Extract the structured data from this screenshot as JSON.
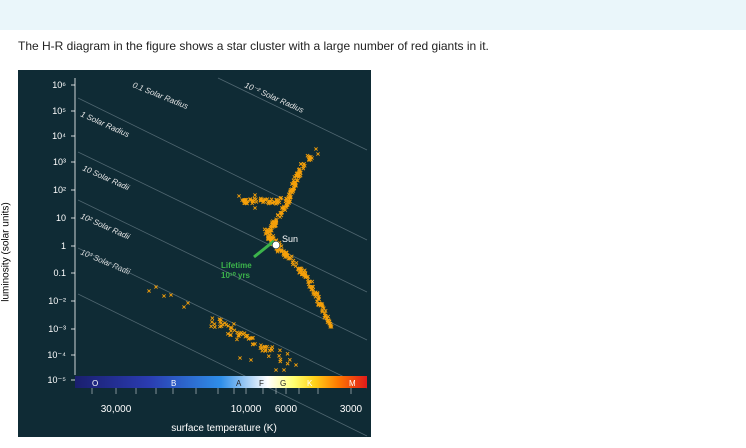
{
  "question": "The H-R diagram in the figure shows a star cluster with a large number of red giants in it.",
  "chart_data": {
    "type": "scatter",
    "title": "",
    "ylabel": "luminosity (solar units)",
    "xlabel": "surface temperature (K)",
    "y_scale": "log",
    "y_ticks": [
      "10⁶",
      "10⁵",
      "10⁴",
      "10³",
      "10²",
      "10",
      "1",
      "0.1",
      "10⁻²",
      "10⁻³",
      "10⁻⁴",
      "10⁻⁵"
    ],
    "ylim": [
      1e-05,
      1000000
    ],
    "x_scale": "reversed-log",
    "x_ticks": [
      "30,000",
      "10,000",
      "6000",
      "3000"
    ],
    "spectral_classes": [
      "O",
      "B",
      "A",
      "F",
      "G",
      "K",
      "M"
    ],
    "radius_lines": [
      "10⁻² Solar Radius",
      "0.1 Solar Radius",
      "1 Solar Radius",
      "10 Solar Radii",
      "10² Solar Radii",
      "10³ Solar Radii"
    ],
    "annotations": {
      "sun": "Sun",
      "lifetime_line1": "Lifetime",
      "lifetime_line2": "10¹⁰ yrs"
    },
    "colors": {
      "background": "#0f2b35",
      "stars": "#f5a00a",
      "lifetime_marker": "#3cb44b",
      "sun": "#ffffff",
      "ylabel": "#000000"
    }
  }
}
